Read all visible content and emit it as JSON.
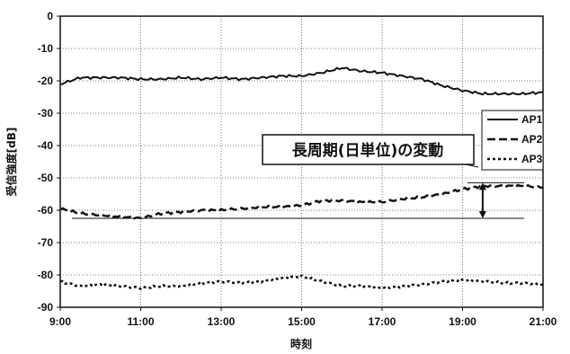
{
  "chart_data": {
    "type": "line",
    "title": "",
    "xlabel": "時刻",
    "ylabel": "受信強度[dB]",
    "ylim": [
      -90,
      0
    ],
    "xlim": [
      "9:00",
      "21:00"
    ],
    "yticks": [
      0,
      -10,
      -20,
      -30,
      -40,
      -50,
      -60,
      -70,
      -80,
      -90
    ],
    "xticks": [
      "9:00",
      "11:00",
      "13:00",
      "15:00",
      "17:00",
      "19:00",
      "21:00"
    ],
    "grid": true,
    "legend_position": "right",
    "x": [
      "9:00",
      "9:30",
      "10:00",
      "10:30",
      "11:00",
      "11:30",
      "12:00",
      "12:30",
      "13:00",
      "13:30",
      "14:00",
      "14:30",
      "15:00",
      "15:30",
      "16:00",
      "16:30",
      "17:00",
      "17:30",
      "18:00",
      "18:30",
      "19:00",
      "19:30",
      "20:00",
      "20:30",
      "21:00"
    ],
    "series": [
      {
        "name": "AP1",
        "style": "solid",
        "values": [
          -21,
          -19,
          -19,
          -19,
          -19.5,
          -19.5,
          -19,
          -19.5,
          -19,
          -19.5,
          -19,
          -18.5,
          -18.5,
          -17.5,
          -16,
          -17,
          -17.5,
          -18.5,
          -19.5,
          -21.5,
          -23,
          -24,
          -24,
          -24,
          -23.5
        ]
      },
      {
        "name": "AP2",
        "style": "dashed",
        "values": [
          -59.5,
          -61,
          -61.5,
          -62,
          -62.5,
          -61,
          -60.5,
          -60,
          -60,
          -59.5,
          -59,
          -59,
          -58.5,
          -57,
          -57,
          -57.5,
          -57.5,
          -56.5,
          -56,
          -55,
          -53.5,
          -52.5,
          -52.5,
          -52.5,
          -53
        ]
      },
      {
        "name": "AP3",
        "style": "dotted",
        "values": [
          -82,
          -83.5,
          -83,
          -83.5,
          -84,
          -83.5,
          -83.5,
          -82.5,
          -82,
          -82.5,
          -82,
          -81,
          -80.5,
          -82,
          -83.5,
          -83.5,
          -84,
          -83.5,
          -83,
          -82,
          -81.5,
          -82,
          -82.5,
          -82.5,
          -83
        ]
      }
    ],
    "annotation": {
      "text": "長周期(日単位)の変動",
      "reference_lines": [
        -51.5,
        -62.5
      ],
      "arrow_at": "19:30"
    }
  },
  "colors": {
    "line": "#111111",
    "grid": "#555555",
    "background": "#ffffff"
  }
}
